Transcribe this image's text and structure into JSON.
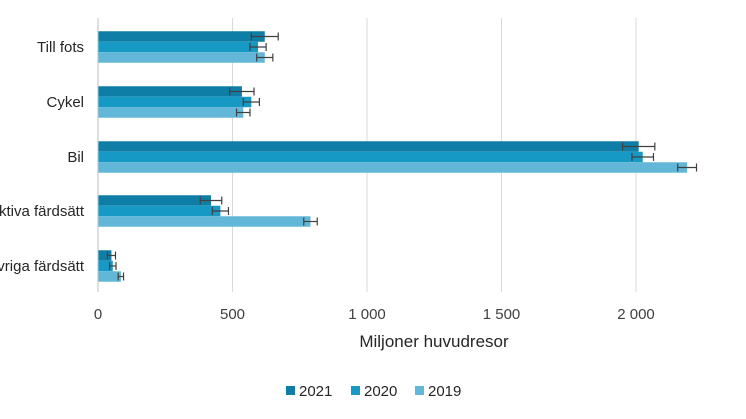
{
  "chart_data": {
    "type": "bar",
    "orientation": "horizontal",
    "categories": [
      "Till fots",
      "Cykel",
      "Bil",
      "Kollektiva färdsätt",
      "Övriga färdsätt"
    ],
    "series": [
      {
        "name": "2021",
        "color": "#0e7ea6",
        "values": [
          620,
          535,
          2010,
          420,
          50
        ],
        "error": [
          50,
          45,
          60,
          40,
          15
        ]
      },
      {
        "name": "2020",
        "color": "#1699c4",
        "values": [
          595,
          570,
          2025,
          455,
          55
        ],
        "error": [
          30,
          30,
          40,
          30,
          12
        ]
      },
      {
        "name": "2019",
        "color": "#62b7d8",
        "values": [
          620,
          540,
          2190,
          790,
          85
        ],
        "error": [
          30,
          25,
          35,
          25,
          10
        ]
      }
    ],
    "xlabel": "Miljoner huvudresor",
    "ylabel": "",
    "xlim": [
      0,
      2200
    ],
    "xticks": [
      0,
      500,
      1000,
      1500,
      2000
    ],
    "xtick_labels": [
      "0",
      "500",
      "1 000",
      "1 500",
      "2 000"
    ],
    "grid": "vertical",
    "legend_position": "bottom",
    "error_bars": true
  }
}
